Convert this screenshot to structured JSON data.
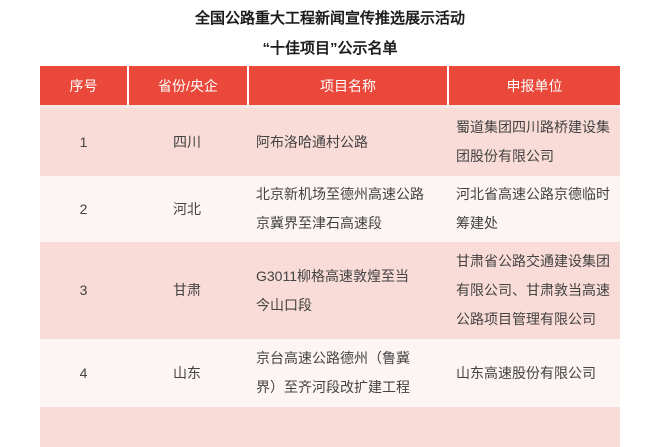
{
  "page": {
    "title": "全国公路重大工程新闻宣传推选展示活动",
    "subtitle": "“十佳项目”公示名单"
  },
  "table": {
    "columns": [
      "序号",
      "省份/央企",
      "项目名称",
      "申报单位"
    ],
    "rows": [
      {
        "no": "1",
        "region": "四川",
        "project": "阿布洛哈通村公路",
        "unit": "蜀道集团四川路桥建设集\n团股份有限公司"
      },
      {
        "no": "2",
        "region": "河北",
        "project": "北京新机场至德州高速公路\n京冀界至津石高速段",
        "unit": "河北省高速公路京德临时\n筹建处"
      },
      {
        "no": "3",
        "region": "甘肃",
        "project": "G3011柳格高速敦煌至当\n今山口段",
        "unit": "甘肃省公路交通建设集团\n有限公司、甘肃敦当高速\n公路项目管理有限公司"
      },
      {
        "no": "4",
        "region": "山东",
        "project": "京台高速公路德州（鲁冀\n界）至齐河段改扩建工程",
        "unit": "山东高速股份有限公司"
      }
    ]
  },
  "colors": {
    "header_bg": "#e9483a",
    "header_text": "#ffffff",
    "row_alt_pink": "#f9dbd7",
    "row_alt_light": "#fcf5f3",
    "body_text": "#434343"
  }
}
